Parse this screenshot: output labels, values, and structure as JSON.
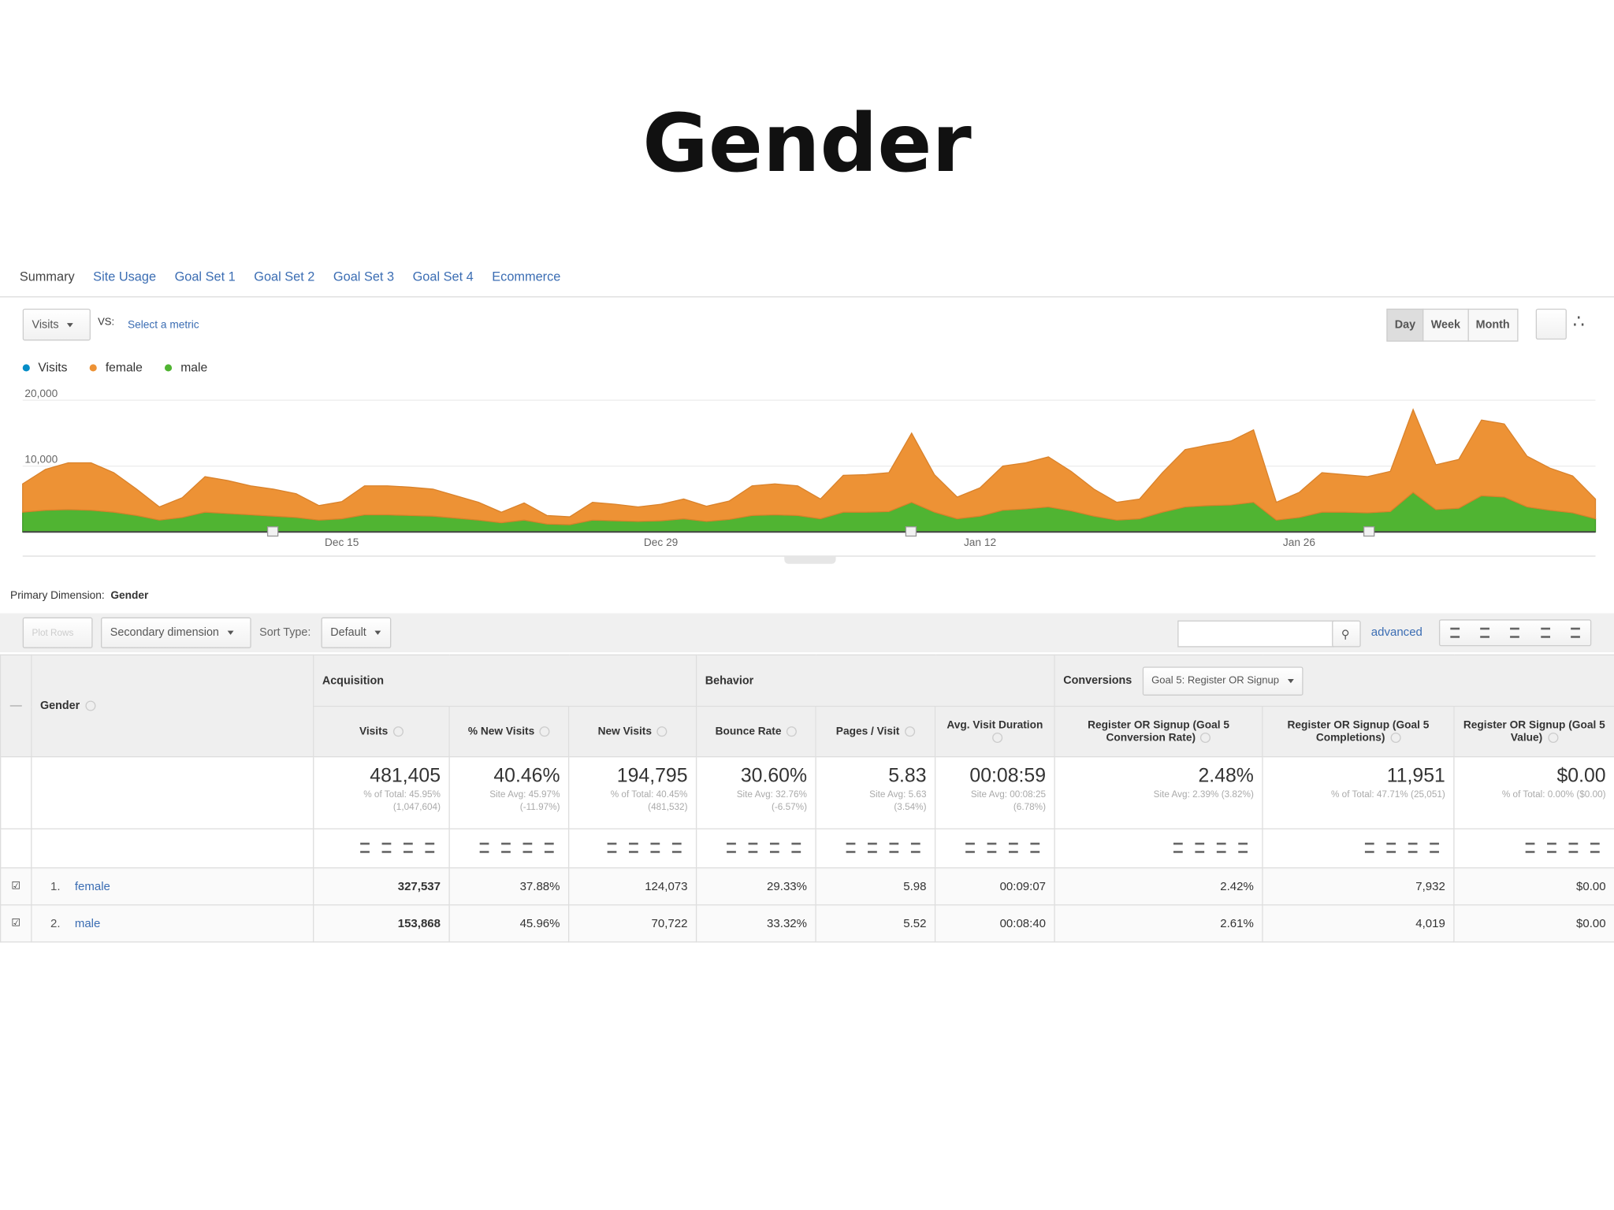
{
  "title": "Gender",
  "tabs": [
    "Summary",
    "Site Usage",
    "Goal Set 1",
    "Goal Set 2",
    "Goal Set 3",
    "Goal Set 4",
    "Ecommerce"
  ],
  "metric": "Visits",
  "vs": "VS:",
  "select_metric": "Select a metric",
  "periods": [
    "Day",
    "Week",
    "Month"
  ],
  "chart_data": {
    "type": "area",
    "stacked": true,
    "categories": [
      null,
      null,
      null,
      null,
      null,
      null,
      null,
      null,
      null,
      null,
      null,
      null,
      null,
      null,
      "Dec 15",
      null,
      null,
      null,
      null,
      null,
      null,
      null,
      null,
      null,
      null,
      null,
      null,
      null,
      "Dec 29",
      null,
      null,
      null,
      null,
      null,
      null,
      null,
      null,
      null,
      null,
      null,
      null,
      null,
      "Jan 12",
      null,
      null,
      null,
      null,
      null,
      null,
      null,
      null,
      null,
      null,
      null,
      null,
      null,
      "Jan 26",
      null,
      null,
      null,
      null,
      null,
      null,
      null,
      null,
      null,
      null,
      null,
      null,
      null
    ],
    "series": [
      {
        "name": "Visits",
        "color": "#058dc7"
      },
      {
        "name": "female",
        "color": "#ed9235",
        "values": [
          4300,
          6200,
          7100,
          7200,
          6000,
          4000,
          2000,
          3000,
          5400,
          5000,
          4400,
          4100,
          3600,
          2200,
          2600,
          4400,
          4400,
          4300,
          4100,
          3400,
          2700,
          1600,
          2600,
          1300,
          1200,
          2700,
          2500,
          2200,
          2500,
          3000,
          2300,
          2800,
          4500,
          4700,
          4500,
          3000,
          5600,
          5700,
          5900,
          10500,
          5700,
          3300,
          4300,
          6700,
          7000,
          7600,
          6000,
          4100,
          2700,
          3000,
          6000,
          8700,
          9200,
          9700,
          11000,
          2700,
          3800,
          6000,
          5700,
          5500,
          6100,
          12600,
          6800,
          7400,
          11500,
          11100,
          7700,
          6400,
          5600,
          3000
        ]
      },
      {
        "name": "male",
        "color": "#50b432",
        "values": [
          3000,
          3300,
          3400,
          3300,
          3000,
          2500,
          1800,
          2200,
          3000,
          2800,
          2600,
          2400,
          2200,
          1800,
          2000,
          2600,
          2600,
          2500,
          2400,
          2100,
          1800,
          1400,
          1800,
          1200,
          1100,
          1800,
          1700,
          1600,
          1700,
          2000,
          1600,
          1900,
          2500,
          2600,
          2500,
          2000,
          3000,
          3000,
          3100,
          4500,
          3000,
          2000,
          2400,
          3300,
          3500,
          3800,
          3200,
          2400,
          1800,
          2000,
          3000,
          3800,
          4000,
          4100,
          4500,
          1800,
          2200,
          3000,
          3000,
          2900,
          3100,
          6000,
          3400,
          3600,
          5500,
          5300,
          3800,
          3300,
          2900,
          2000
        ]
      }
    ],
    "ylim": [
      0,
      20000
    ],
    "yticks": [
      {
        "value": 20000,
        "label": "20,000"
      },
      {
        "value": 10000,
        "label": "10,000"
      }
    ],
    "grid": true
  },
  "primary_dimension": {
    "label": "Primary Dimension:",
    "value": "Gender"
  },
  "toolbar": {
    "plot_rows": "Plot Rows",
    "secondary_dimension": "Secondary dimension",
    "sort_type": "Sort Type:",
    "sort_value": "Default",
    "advanced": "advanced"
  },
  "table": {
    "dimension": "Gender",
    "groups": [
      {
        "name": "Acquisition"
      },
      {
        "name": "Behavior"
      },
      {
        "name": "Conversions",
        "select": "Goal 5: Register OR Signup"
      }
    ],
    "columns": [
      "Visits",
      "% New Visits",
      "New Visits",
      "Bounce Rate",
      "Pages / Visit",
      "Avg. Visit Duration",
      "Register OR Signup (Goal 5 Conversion Rate)",
      "Register OR Signup (Goal 5 Completions)",
      "Register OR Signup (Goal 5 Value)"
    ],
    "totals": [
      {
        "value": "481,405",
        "note": "% of Total: 45.95% (1,047,604)"
      },
      {
        "value": "40.46%",
        "note": "Site Avg: 45.97% (-11.97%)"
      },
      {
        "value": "194,795",
        "note": "% of Total: 40.45% (481,532)"
      },
      {
        "value": "30.60%",
        "note": "Site Avg: 32.76% (-6.57%)"
      },
      {
        "value": "5.83",
        "note": "Site Avg: 5.63 (3.54%)"
      },
      {
        "value": "00:08:59",
        "note": "Site Avg: 00:08:25 (6.78%)"
      },
      {
        "value": "2.48%",
        "note": "Site Avg: 2.39% (3.82%)"
      },
      {
        "value": "11,951",
        "note": "% of Total: 47.71% (25,051)"
      },
      {
        "value": "$0.00",
        "note": "% of Total: 0.00% ($0.00)"
      }
    ],
    "rows": [
      {
        "index": "1.",
        "name": "female",
        "cells": [
          "327,537",
          "37.88%",
          "124,073",
          "29.33%",
          "5.98",
          "00:09:07",
          "2.42%",
          "7,932",
          "$0.00"
        ]
      },
      {
        "index": "2.",
        "name": "male",
        "cells": [
          "153,868",
          "45.96%",
          "70,722",
          "33.32%",
          "5.52",
          "00:08:40",
          "2.61%",
          "4,019",
          "$0.00"
        ]
      }
    ]
  }
}
